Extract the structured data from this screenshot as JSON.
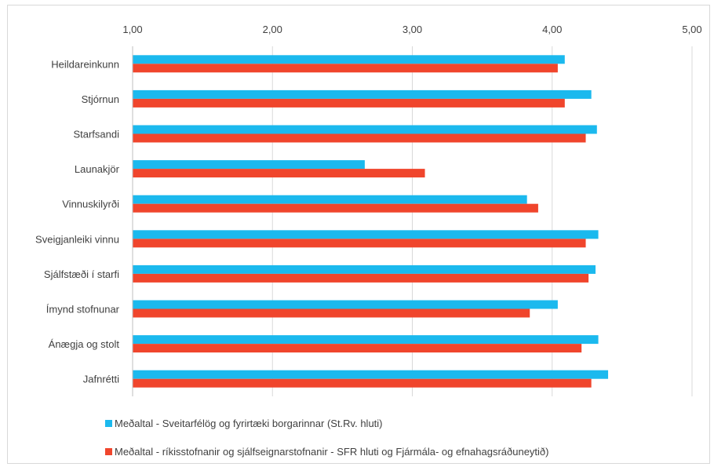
{
  "chart_data": {
    "type": "bar",
    "orientation": "horizontal",
    "title": "",
    "xlim": [
      1.0,
      5.0
    ],
    "x_ticks": [
      "1,00",
      "2,00",
      "3,00",
      "4,00",
      "5,00"
    ],
    "x_axis_position": "top",
    "grid": "vertical",
    "legend_position": "bottom",
    "categories": [
      "Heildareinkunn",
      "Stjórnun",
      "Starfsandi",
      "Launakjör",
      "Vinnuskilyrði",
      "Sveigjanleiki vinnu",
      "Sjálfstæði í starfi",
      "Ímynd stofnunar",
      "Ánægja og stolt",
      "Jafnrétti"
    ],
    "series": [
      {
        "name": "Meðaltal - Sveitarfélög og fyrirtæki borgarinnar (St.Rv. hluti)",
        "color": "#1BB9EE",
        "values": [
          4.09,
          4.28,
          4.32,
          2.66,
          3.82,
          4.33,
          4.31,
          4.04,
          4.33,
          4.4
        ]
      },
      {
        "name": "Meðaltal - ríkisstofnanir og sjálfseignarstofnanir - SFR hluti og Fjármála- og efnahagsráðuneytið)",
        "color": "#F0452C",
        "values": [
          4.04,
          4.09,
          4.24,
          3.09,
          3.9,
          4.24,
          4.26,
          3.84,
          4.21,
          4.28
        ]
      }
    ]
  }
}
